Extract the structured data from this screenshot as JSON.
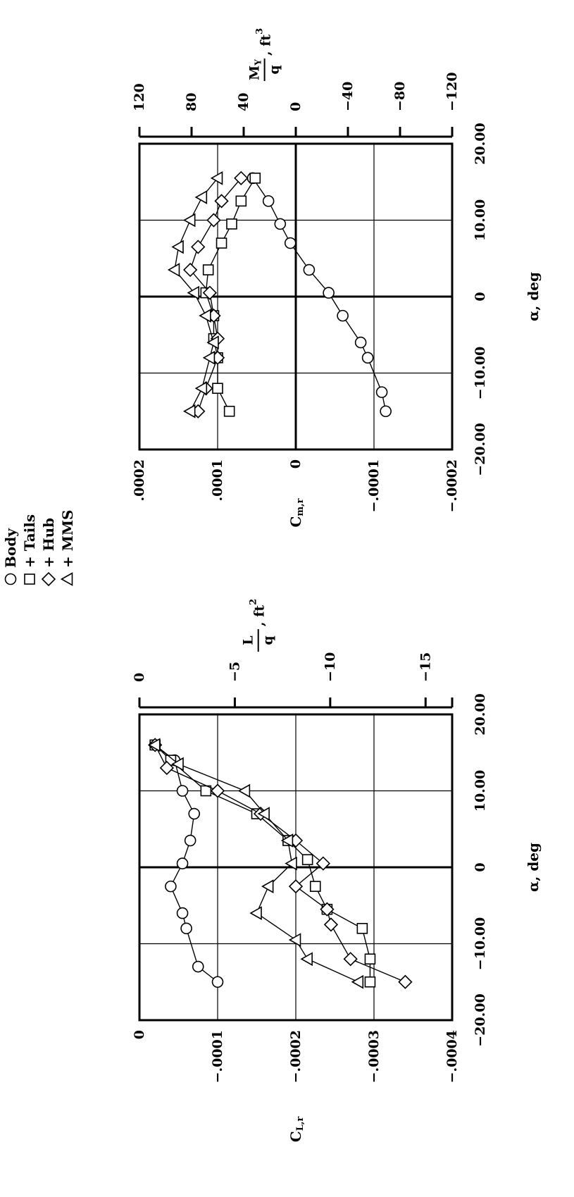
{
  "legend": {
    "items": [
      {
        "marker": "circle",
        "label": "Body"
      },
      {
        "marker": "square",
        "label": "+ Tails"
      },
      {
        "marker": "diamond",
        "label": "+ Hub"
      },
      {
        "marker": "triangle",
        "label": "+ MMS"
      }
    ]
  },
  "chart_data": [
    {
      "type": "line",
      "orientation": "rotated-90-ccw",
      "xlabel": "α, deg",
      "xlim": [
        -20,
        20
      ],
      "x_ticks": [
        "-20.00",
        "-10.00",
        "0",
        "10.00",
        "20.00"
      ],
      "ylabel": "C",
      "ylabel_sub": "L,r",
      "ylim": [
        -0.0004,
        0
      ],
      "y_ticks": [
        "0",
        "-.0001",
        "-.0002",
        "-.0003",
        "-.0004"
      ],
      "secondary_axis": {
        "label_num": "L",
        "label_den": "q",
        "label_unit": ", ft",
        "label_exp": "2",
        "range": [
          0,
          -15
        ],
        "ticks": [
          "0",
          "-5",
          "-10",
          "-15"
        ]
      },
      "grid": true,
      "series": [
        {
          "name": "Body",
          "marker": "circle",
          "x": [
            -15,
            -13,
            -8,
            -6,
            -2.5,
            0.5,
            3.5,
            7,
            10,
            14,
            16
          ],
          "y": [
            -0.0001,
            -7.5e-05,
            -6e-05,
            -5.5e-05,
            -4e-05,
            -5.5e-05,
            -6.5e-05,
            -7e-05,
            -5.5e-05,
            -4.5e-05,
            -2e-05
          ]
        },
        {
          "name": "+ Tails",
          "marker": "square",
          "x": [
            -15,
            -12,
            -8,
            -5.5,
            -2.5,
            1,
            3.5,
            7,
            10,
            14,
            16
          ],
          "y": [
            -0.000295,
            -0.000295,
            -0.000285,
            -0.00024,
            -0.000225,
            -0.000215,
            -0.00019,
            -0.00015,
            -8.5e-05,
            -4e-05,
            -2e-05
          ]
        },
        {
          "name": "+ Hub",
          "marker": "diamond",
          "x": [
            -15,
            -12,
            -7.5,
            -5.5,
            -2.5,
            0.5,
            3.5,
            7,
            10,
            13,
            16
          ],
          "y": [
            -0.00034,
            -0.00027,
            -0.000245,
            -0.00024,
            -0.0002,
            -0.000235,
            -0.0002,
            -0.000155,
            -0.0001,
            -3.5e-05,
            -2e-05
          ]
        },
        {
          "name": "+ MMS",
          "marker": "triangle",
          "x": [
            -15,
            -12,
            -9.5,
            -6,
            -2.5,
            0.5,
            3.5,
            7,
            10,
            13.5,
            16
          ],
          "y": [
            -0.00028,
            -0.000215,
            -0.0002,
            -0.00015,
            -0.000165,
            -0.000195,
            -0.00019,
            -0.00016,
            -0.000135,
            -5e-05,
            -2e-05
          ]
        }
      ]
    },
    {
      "type": "line",
      "orientation": "rotated-90-ccw",
      "xlabel": "α, deg",
      "xlim": [
        -20,
        20
      ],
      "x_ticks": [
        "-20.00",
        "-10.00",
        "0",
        "10.00",
        "20.00"
      ],
      "ylabel": "C",
      "ylabel_sub": "m,r",
      "ylim": [
        -0.0002,
        0.0002
      ],
      "y_ticks": [
        ".0002",
        ".0001",
        "0",
        "-.0001",
        "-.0002"
      ],
      "secondary_axis": {
        "label_num": "M",
        "label_num_sub": "Y",
        "label_den": "q",
        "label_unit": ", ft",
        "label_exp": "3",
        "range": [
          120,
          -120
        ],
        "ticks": [
          "120",
          "80",
          "40",
          "0",
          "-40",
          "-80",
          "-120"
        ]
      },
      "grid": true,
      "series": [
        {
          "name": "Body",
          "marker": "circle",
          "x": [
            -15,
            -12.5,
            -8,
            -6,
            -2.5,
            0.5,
            3.5,
            7,
            9.5,
            12.5,
            15.5
          ],
          "y": [
            -0.000115,
            -0.00011,
            -9.2e-05,
            -8.3e-05,
            -6e-05,
            -4.2e-05,
            -1.7e-05,
            7e-06,
            2e-05,
            3.5e-05,
            5.5e-05
          ]
        },
        {
          "name": "+ Tails",
          "marker": "square",
          "x": [
            -15,
            -12,
            -8,
            -5.5,
            -2.5,
            0.5,
            3.5,
            7,
            9.5,
            12.5,
            15.5
          ],
          "y": [
            8.5e-05,
            0.0001,
            0.0001,
            0.000105,
            0.000105,
            0.000115,
            0.000112,
            9.5e-05,
            8.2e-05,
            7e-05,
            5.2e-05
          ]
        },
        {
          "name": "+ Hub",
          "marker": "diamond",
          "x": [
            -15,
            -12,
            -8,
            -5.5,
            -2.5,
            0.5,
            3.5,
            6.5,
            10,
            12.5,
            15.5
          ],
          "y": [
            0.000125,
            0.000115,
            0.0001,
            0.0001,
            0.000105,
            0.00011,
            0.000135,
            0.000125,
            0.000105,
            9.5e-05,
            7e-05
          ]
        },
        {
          "name": "+ MMS",
          "marker": "triangle",
          "x": [
            -15,
            -12,
            -8,
            -6,
            -2.5,
            0.5,
            3.5,
            6.5,
            10,
            13,
            15.5
          ],
          "y": [
            0.000135,
            0.00012,
            0.00011,
            0.000105,
            0.000115,
            0.00013,
            0.000155,
            0.00015,
            0.000135,
            0.00012,
            0.0001
          ]
        }
      ]
    }
  ]
}
